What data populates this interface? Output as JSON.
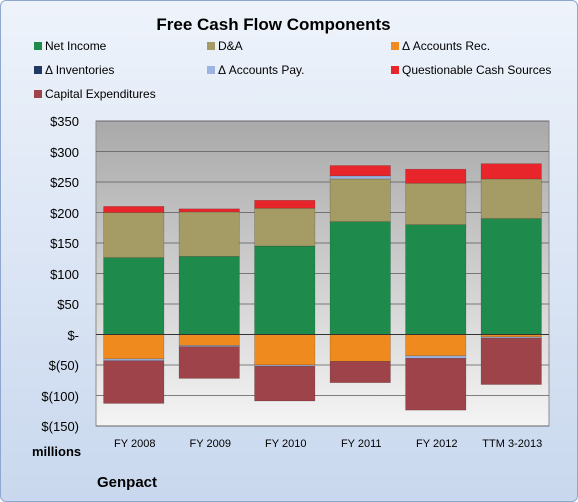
{
  "chart_data": {
    "type": "bar",
    "stacked": true,
    "title": "Free Cash Flow Components",
    "unit_label": "millions",
    "company": "Genpact",
    "categories": [
      "FY 2008",
      "FY 2009",
      "FY 2010",
      "FY 2011",
      "FY 2012",
      "TTM 3-2013"
    ],
    "ylim": [
      -150,
      350
    ],
    "yticks": [
      350,
      300,
      250,
      200,
      150,
      100,
      50,
      0,
      -50,
      -100,
      -150
    ],
    "ytick_labels": [
      "$350",
      "$300",
      "$250",
      "$200",
      "$150",
      "$100",
      "$50",
      "$-",
      "$(50)",
      "$(100)",
      "$(150)"
    ],
    "grid": true,
    "legend_position": "top",
    "series": [
      {
        "name": "Net Income",
        "color": "#1e8a4c",
        "values": [
          126,
          128,
          145,
          185,
          180,
          190
        ]
      },
      {
        "name": "D&A",
        "color": "#a59b64",
        "values": [
          74,
          73,
          62,
          70,
          68,
          65
        ]
      },
      {
        "name": "Δ Accounts Rec.",
        "color": "#ee8a1e",
        "values": [
          -40,
          -18,
          -50,
          -44,
          -35,
          -4
        ]
      },
      {
        "name": "Δ Inventories",
        "color": "#1f3864",
        "values": [
          0,
          0,
          0,
          0,
          0,
          0
        ]
      },
      {
        "name": "Δ Accounts Pay.",
        "color": "#9db4e0",
        "values": [
          -3,
          -2,
          -2,
          5,
          -4,
          -2
        ]
      },
      {
        "name": "Questionable Cash Sources",
        "color": "#e8252a",
        "values": [
          10,
          5,
          13,
          17,
          23,
          25
        ]
      },
      {
        "name": "Capital Expenditures",
        "color": "#9e4349",
        "values": [
          -70,
          -52,
          -57,
          -35,
          -85,
          -76
        ]
      }
    ]
  }
}
